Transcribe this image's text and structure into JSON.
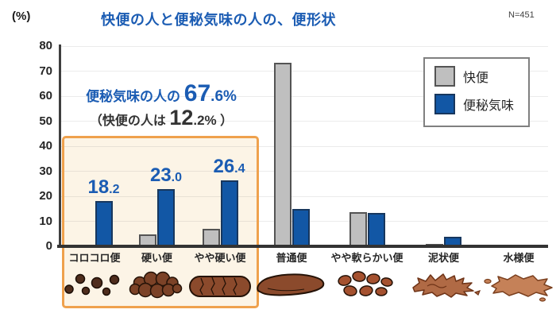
{
  "chart": {
    "title": "快便の人と便秘気味の人の、便形状",
    "sample_size": "N=451",
    "percent_label": "(%)",
    "annotation": {
      "line1_prefix": "便秘気味の人の ",
      "line1_value": "67.6%",
      "line2_open": "（",
      "line2_prefix": "快便の人は ",
      "line2_value": "12.2%",
      "line2_close": " ）"
    }
  },
  "chart_data": {
    "type": "bar",
    "title": "快便の人と便秘気味の人の、便形状",
    "sample_size": "N=451",
    "categories": [
      "コロコロ便",
      "硬い便",
      "やや硬い便",
      "普通便",
      "やや軟らかい便",
      "泥状便",
      "水様便"
    ],
    "series": [
      {
        "name": "快便",
        "color": "#BFBFBF",
        "border": "#545454",
        "values": [
          0.5,
          4.8,
          6.9,
          73.3,
          13.5,
          0.8,
          0.2
        ]
      },
      {
        "name": "便秘気味",
        "color": "#1257A5",
        "border": "#17375E",
        "values": [
          18.2,
          23.0,
          26.4,
          15.0,
          13.2,
          3.9,
          0.3
        ]
      }
    ],
    "value_labels": [
      {
        "series": 1,
        "index": 0,
        "text": "18.2"
      },
      {
        "series": 1,
        "index": 1,
        "text": "23.0"
      },
      {
        "series": 1,
        "index": 2,
        "text": "26.4"
      }
    ],
    "ylabel": "(%)",
    "ylim": [
      0,
      80
    ],
    "yticks": [
      0,
      10,
      20,
      30,
      40,
      50,
      60,
      70,
      80
    ],
    "grid": true,
    "legend_position": "top-right",
    "highlighted_categories": [
      "コロコロ便",
      "硬い便",
      "やや硬い便"
    ],
    "highlight_color": "#EFA14D",
    "annotation_sum_blue": "67.6%",
    "annotation_sum_gray": "12.2%",
    "icons": [
      "pellets",
      "hard-lumpy",
      "cracked-sausage",
      "smooth-sausage",
      "soft-blobs",
      "mushy-splat",
      "watery-splat"
    ]
  }
}
